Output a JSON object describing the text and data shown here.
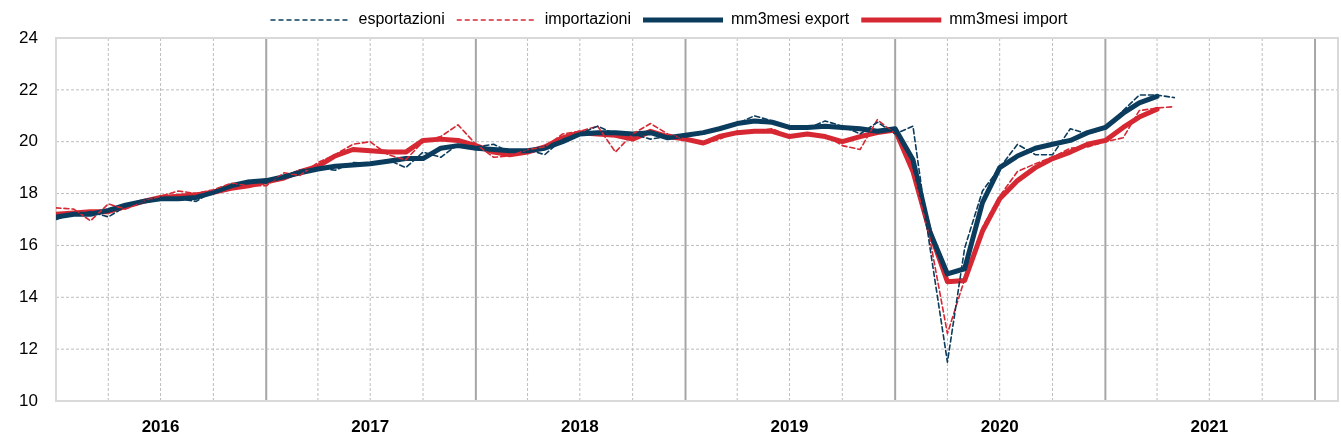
{
  "chart_data": {
    "type": "line",
    "x": [
      "2016-01",
      "2016-02",
      "2016-03",
      "2016-04",
      "2016-05",
      "2016-06",
      "2016-07",
      "2016-08",
      "2016-09",
      "2016-10",
      "2016-11",
      "2016-12",
      "2017-01",
      "2017-02",
      "2017-03",
      "2017-04",
      "2017-05",
      "2017-06",
      "2017-07",
      "2017-08",
      "2017-09",
      "2017-10",
      "2017-11",
      "2017-12",
      "2018-01",
      "2018-02",
      "2018-03",
      "2018-04",
      "2018-05",
      "2018-06",
      "2018-07",
      "2018-08",
      "2018-09",
      "2018-10",
      "2018-11",
      "2018-12",
      "2019-01",
      "2019-02",
      "2019-03",
      "2019-04",
      "2019-05",
      "2019-06",
      "2019-07",
      "2019-08",
      "2019-09",
      "2019-10",
      "2019-11",
      "2019-12",
      "2020-01",
      "2020-02",
      "2020-03",
      "2020-04",
      "2020-05",
      "2020-06",
      "2020-07",
      "2020-08",
      "2020-09",
      "2020-10",
      "2020-11",
      "2020-12",
      "2021-01",
      "2021-02",
      "2021-03",
      "2021-04",
      "2021-05"
    ],
    "series": [
      {
        "name": "esportazioni",
        "color": "#0b3c5d",
        "line_style": "dashed",
        "values": [
          17.0,
          17.2,
          17.3,
          17.1,
          17.5,
          17.7,
          17.8,
          17.8,
          17.7,
          18.1,
          18.3,
          18.5,
          18.4,
          18.7,
          18.9,
          19.0,
          18.9,
          19.2,
          19.15,
          19.3,
          19.0,
          19.6,
          19.4,
          19.9,
          19.8,
          19.9,
          19.6,
          19.7,
          19.5,
          20.1,
          20.3,
          20.6,
          20.3,
          20.3,
          20.1,
          20.2,
          20.2,
          20.3,
          20.5,
          20.7,
          21.0,
          20.8,
          20.5,
          20.5,
          20.8,
          20.6,
          20.3,
          20.75,
          20.3,
          20.6,
          16.0,
          11.5,
          15.9,
          18.1,
          19.0,
          19.9,
          19.5,
          19.5,
          20.5,
          20.3,
          20.5,
          21.2,
          21.8,
          21.8,
          21.7
        ]
      },
      {
        "name": "importazioni",
        "color": "#d62833",
        "line_style": "dashed",
        "values": [
          17.45,
          17.4,
          16.95,
          17.6,
          17.4,
          17.7,
          17.9,
          18.1,
          18.0,
          18.15,
          18.4,
          18.3,
          18.3,
          18.8,
          18.7,
          19.2,
          19.5,
          19.9,
          20.0,
          19.5,
          19.3,
          20.0,
          20.2,
          20.65,
          19.9,
          19.4,
          19.45,
          19.7,
          19.8,
          20.3,
          20.4,
          20.6,
          19.6,
          20.3,
          20.7,
          20.3,
          20.1,
          19.9,
          20.1,
          20.4,
          20.4,
          20.5,
          20.2,
          20.3,
          20.25,
          19.85,
          19.7,
          20.85,
          20.3,
          18.8,
          16.3,
          12.6,
          14.7,
          16.7,
          17.9,
          18.85,
          19.15,
          19.4,
          19.75,
          19.8,
          20.0,
          20.15,
          21.2,
          21.3,
          21.35
        ]
      },
      {
        "name": "mm3mesi export",
        "color": "#0b3c5d",
        "line_style": "solid",
        "values": [
          17.1,
          17.2,
          17.2,
          17.35,
          17.55,
          17.7,
          17.8,
          17.8,
          17.85,
          18.05,
          18.3,
          18.45,
          18.5,
          18.65,
          18.8,
          18.95,
          19.05,
          19.1,
          19.15,
          19.25,
          19.35,
          19.35,
          19.75,
          19.85,
          19.75,
          19.7,
          19.65,
          19.65,
          19.75,
          20.0,
          20.3,
          20.35,
          20.35,
          20.3,
          20.35,
          20.15,
          20.25,
          20.35,
          20.5,
          20.7,
          20.8,
          20.75,
          20.55,
          20.55,
          20.6,
          20.55,
          20.5,
          20.4,
          20.5,
          19.3,
          16.55,
          14.9,
          15.1,
          17.65,
          19.0,
          19.45,
          19.75,
          19.9,
          20.05,
          20.35,
          20.55,
          21.1,
          21.5,
          21.75,
          null
        ]
      },
      {
        "name": "mm3mesi import",
        "color": "#d62833",
        "line_style": "solid",
        "values": [
          17.2,
          17.25,
          17.3,
          17.3,
          17.5,
          17.7,
          17.85,
          17.9,
          17.95,
          18.05,
          18.2,
          18.3,
          18.45,
          18.6,
          18.85,
          19.05,
          19.45,
          19.7,
          19.65,
          19.6,
          19.6,
          20.05,
          20.1,
          20.05,
          19.85,
          19.6,
          19.5,
          19.6,
          19.8,
          20.15,
          20.35,
          20.3,
          20.25,
          20.1,
          20.4,
          20.2,
          20.1,
          19.95,
          20.2,
          20.35,
          20.4,
          20.4,
          20.2,
          20.3,
          20.2,
          20.0,
          20.2,
          20.35,
          20.45,
          18.85,
          16.55,
          14.6,
          14.65,
          16.55,
          17.8,
          18.5,
          19.0,
          19.35,
          19.6,
          19.9,
          20.05,
          20.55,
          20.95,
          21.25,
          null
        ]
      }
    ],
    "xlim": [
      "2016-01",
      "2022-02-10"
    ],
    "xticks": [
      {
        "value": "2016-01",
        "label": null
      },
      {
        "value": "2016-04",
        "label": null
      },
      {
        "value": "2016-07",
        "label": "2016"
      },
      {
        "value": "2016-10",
        "label": null
      },
      {
        "value": "2017-01",
        "label": null
      },
      {
        "value": "2017-04",
        "label": null
      },
      {
        "value": "2017-07",
        "label": "2017"
      },
      {
        "value": "2017-10",
        "label": null
      },
      {
        "value": "2018-01",
        "label": null
      },
      {
        "value": "2018-04",
        "label": null
      },
      {
        "value": "2018-07",
        "label": "2018"
      },
      {
        "value": "2018-10",
        "label": null
      },
      {
        "value": "2019-01",
        "label": null
      },
      {
        "value": "2019-04",
        "label": null
      },
      {
        "value": "2019-07",
        "label": "2019"
      },
      {
        "value": "2019-10",
        "label": null
      },
      {
        "value": "2020-01",
        "label": null
      },
      {
        "value": "2020-04",
        "label": null
      },
      {
        "value": "2020-07",
        "label": "2020"
      },
      {
        "value": "2020-10",
        "label": null
      },
      {
        "value": "2021-01",
        "label": null
      },
      {
        "value": "2021-04",
        "label": null
      },
      {
        "value": "2021-07",
        "label": "2021"
      },
      {
        "value": "2021-10",
        "label": null
      },
      {
        "value": "2022-01",
        "label": null
      }
    ],
    "ylim": [
      10,
      24
    ],
    "yticks": [
      10,
      12,
      14,
      16,
      18,
      20,
      22,
      24
    ],
    "grid": true,
    "legend": "top",
    "marker": "none"
  }
}
